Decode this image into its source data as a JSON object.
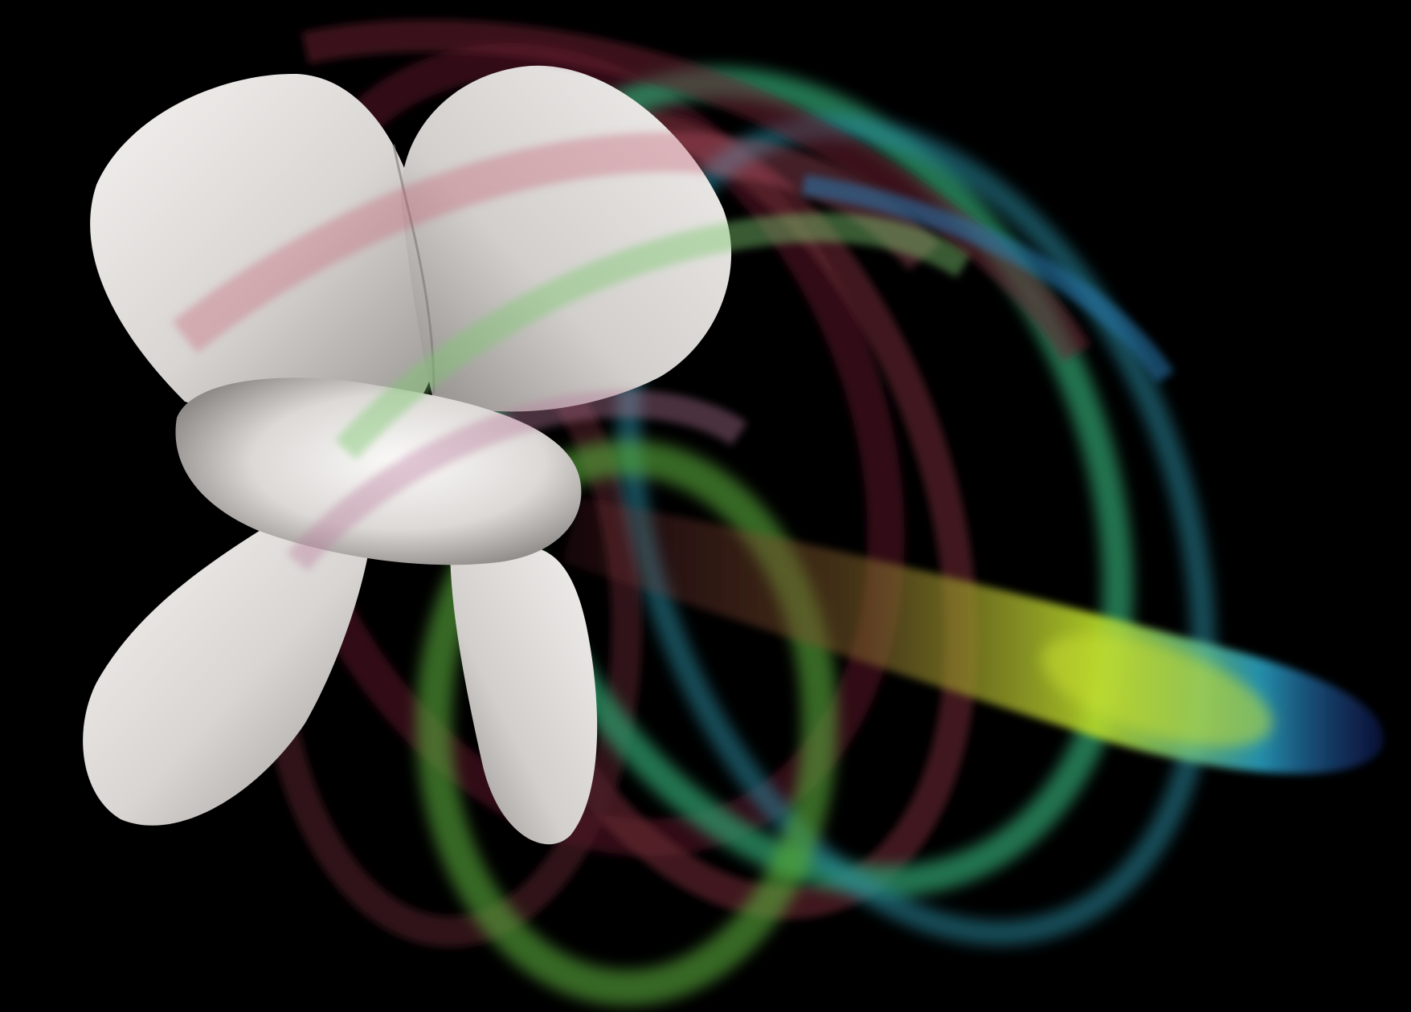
{
  "scene": {
    "background_color": "#000000",
    "propeller": {
      "blade_count": 4,
      "surface_color": "#d9d6d3",
      "shadow_color": "#8f8b88",
      "highlight_color": "#f4f2f0"
    },
    "vortex_colormap": {
      "low": "#5a1020",
      "mid_low": "#8a2a3a",
      "mid": "#3fa86a",
      "mid_high": "#b8d92a",
      "high": "#2aa7c8",
      "edge": "#1a2a8a"
    },
    "tip_vortex_rings": 5,
    "hub_vortex": true
  }
}
